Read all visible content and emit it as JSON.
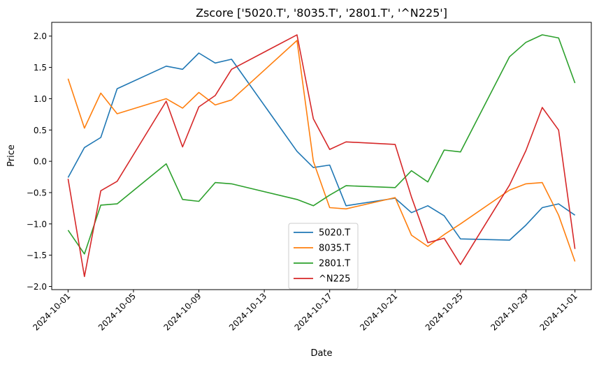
{
  "chart_data": {
    "type": "line",
    "title": "Zscore ['5020.T', '8035.T', '2801.T', '^N225']",
    "xlabel": "Date",
    "ylabel": "Price",
    "ylim": [
      -2.05,
      2.22
    ],
    "yticks": [
      -2.0,
      -1.5,
      -1.0,
      -0.5,
      0.0,
      0.5,
      1.0,
      1.5,
      2.0
    ],
    "ytick_labels": [
      "−2.0",
      "−1.5",
      "−1.0",
      "−0.5",
      "0.0",
      "0.5",
      "1.0",
      "1.5",
      "2.0"
    ],
    "xlim": [
      "2024-09-30",
      "2024-11-02"
    ],
    "xticks": [
      "2024-10-01",
      "2024-10-05",
      "2024-10-09",
      "2024-10-13",
      "2024-10-17",
      "2024-10-21",
      "2024-10-25",
      "2024-10-29",
      "2024-11-01"
    ],
    "x": [
      "2024-10-01",
      "2024-10-02",
      "2024-10-03",
      "2024-10-04",
      "2024-10-07",
      "2024-10-08",
      "2024-10-09",
      "2024-10-10",
      "2024-10-11",
      "2024-10-15",
      "2024-10-16",
      "2024-10-17",
      "2024-10-18",
      "2024-10-21",
      "2024-10-22",
      "2024-10-23",
      "2024-10-24",
      "2024-10-25",
      "2024-10-28",
      "2024-10-29",
      "2024-10-30",
      "2024-10-31",
      "2024-11-01"
    ],
    "legend_position": "lower center",
    "series": [
      {
        "name": "5020.T",
        "color": "#1f77b4",
        "values": [
          -0.26,
          0.22,
          0.38,
          1.16,
          1.52,
          1.47,
          1.73,
          1.57,
          1.63,
          0.16,
          -0.1,
          -0.06,
          -0.71,
          -0.59,
          -0.82,
          -0.71,
          -0.87,
          -1.24,
          -1.26,
          -1.02,
          -0.74,
          -0.68,
          -0.86
        ]
      },
      {
        "name": "8035.T",
        "color": "#ff7f0e",
        "values": [
          1.32,
          0.53,
          1.09,
          0.76,
          1.0,
          0.85,
          1.1,
          0.9,
          0.98,
          1.93,
          0.0,
          -0.74,
          -0.76,
          -0.58,
          -1.18,
          -1.36,
          -1.17,
          -1.0,
          -0.46,
          -0.36,
          -0.34,
          -0.86,
          -1.6
        ]
      },
      {
        "name": "2801.T",
        "color": "#2ca02c",
        "values": [
          -1.1,
          -1.48,
          -0.7,
          -0.68,
          -0.04,
          -0.61,
          -0.64,
          -0.34,
          -0.36,
          -0.61,
          -0.71,
          -0.54,
          -0.39,
          -0.42,
          -0.15,
          -0.33,
          0.18,
          0.15,
          1.67,
          1.9,
          2.02,
          1.97,
          1.25
        ]
      },
      {
        "name": "^N225",
        "color": "#d62728",
        "values": [
          -0.28,
          -1.84,
          -0.47,
          -0.32,
          0.96,
          0.23,
          0.87,
          1.05,
          1.47,
          2.02,
          0.68,
          0.19,
          0.31,
          0.27,
          -0.57,
          -1.3,
          -1.23,
          -1.65,
          -0.38,
          0.17,
          0.86,
          0.5,
          -1.4
        ]
      }
    ]
  }
}
